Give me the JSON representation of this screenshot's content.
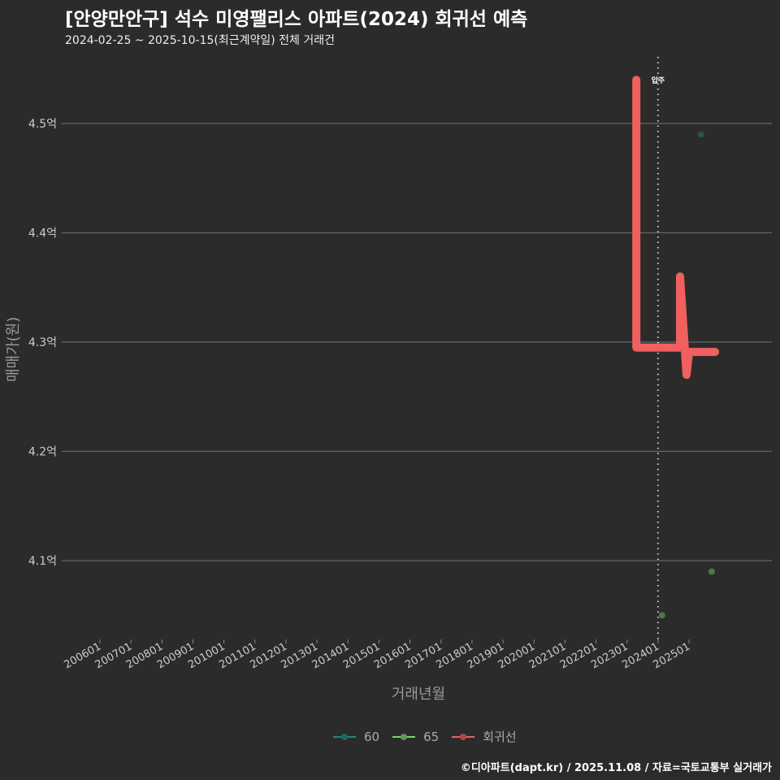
{
  "title": "[안양만안구] 석수 미영팰리스 아파트(2024) 회귀선 예측",
  "subtitle": "2024-02-25 ~ 2025-10-15(최근계약일) 전체 거래건",
  "caption": "©디아파트(dapt.kr) / 2025.11.08 / 자료=국토교통부 실거래가",
  "chart_data": {
    "type": "line",
    "xlabel": "거래년월",
    "ylabel": "매매가(원)",
    "xlim": [
      2005.0,
      2027.2
    ],
    "ylim": [
      4.03,
      4.57
    ],
    "x_ticks": [
      2006,
      2007,
      2008,
      2009,
      2010,
      2011,
      2012,
      2013,
      2014,
      2015,
      2016,
      2017,
      2018,
      2019,
      2020,
      2021,
      2022,
      2023,
      2024,
      2025
    ],
    "x_tick_labels": [
      "200601",
      "200701",
      "200801",
      "200901",
      "201001",
      "201101",
      "201201",
      "201301",
      "201401",
      "201501",
      "201601",
      "201701",
      "201801",
      "201901",
      "202001",
      "202101",
      "202201",
      "202301",
      "202401",
      "202501"
    ],
    "y_ticks": [
      4.1,
      4.2,
      4.3,
      4.4,
      4.5
    ],
    "y_tick_labels": [
      "4.1억",
      "4.2억",
      "4.3억",
      "4.4억",
      "4.5억"
    ],
    "grid": true,
    "annotation": {
      "x": 2024.0,
      "label": "입주"
    },
    "legend_position": "bottom",
    "series": [
      {
        "name": "60",
        "type": "scatter",
        "color": "#1f8a7a",
        "points": [
          [
            2025.39,
            4.49
          ]
        ]
      },
      {
        "name": "65",
        "type": "scatter",
        "color": "#7ad36a",
        "points": [
          [
            2024.13,
            4.05
          ],
          [
            2025.73,
            4.09
          ]
        ]
      },
      {
        "name": "회귀선",
        "type": "line",
        "color": "#f0605f",
        "points": [
          [
            2023.3,
            4.54
          ],
          [
            2023.3,
            4.295
          ],
          [
            2024.71,
            4.295
          ],
          [
            2024.71,
            4.36
          ],
          [
            2024.92,
            4.27
          ],
          [
            2025.0,
            4.291
          ],
          [
            2025.84,
            4.291
          ]
        ]
      }
    ]
  }
}
